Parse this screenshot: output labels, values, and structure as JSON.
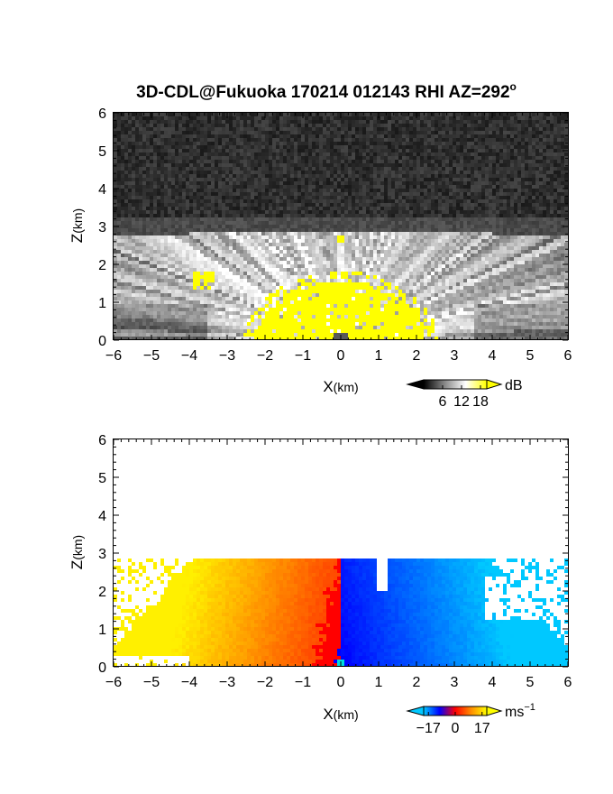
{
  "title": {
    "main": "3D-CDL@Fukuoka 170214 012143 RHI AZ=292",
    "superscript": "o"
  },
  "chart_data": [
    {
      "type": "heatmap",
      "name": "reflectivity",
      "xlabel_main": "X",
      "xlabel_unit": "(km)",
      "ylabel_main": "Z",
      "ylabel_unit": "(km)",
      "xlim": [
        -6,
        6
      ],
      "ylim": [
        0,
        6
      ],
      "xticks": [
        "-6",
        "-5",
        "-4",
        "-3",
        "-2",
        "-1",
        "0",
        "1",
        "2",
        "3",
        "4",
        "5",
        "6"
      ],
      "yticks": [
        "0",
        "1",
        "2",
        "3",
        "4",
        "5",
        "6"
      ],
      "echo_top_km": 2.85,
      "colorbar": {
        "unit": "dB",
        "ticks": [
          "6",
          "12",
          "18"
        ],
        "range": [
          0,
          20
        ],
        "colors": {
          "low": "#000000",
          "high": "#ffffff",
          "over": "#ffff00"
        }
      }
    },
    {
      "type": "heatmap",
      "name": "doppler-velocity",
      "xlabel_main": "X",
      "xlabel_unit": "(km)",
      "ylabel_main": "Z",
      "ylabel_unit": "(km)",
      "xlim": [
        -6,
        6
      ],
      "ylim": [
        0,
        6
      ],
      "xticks": [
        "-6",
        "-5",
        "-4",
        "-3",
        "-2",
        "-1",
        "0",
        "1",
        "2",
        "3",
        "4",
        "5",
        "6"
      ],
      "yticks": [
        "0",
        "1",
        "2",
        "3",
        "4",
        "5",
        "6"
      ],
      "echo_top_km": 2.85,
      "colorbar": {
        "unit_main": "ms",
        "unit_sup": "−1",
        "ticks": [
          "−17",
          "0",
          "17"
        ],
        "range": [
          -20,
          20
        ],
        "colors": {
          "neg_far": "#00c8ff",
          "neg_near": "#0000ff",
          "zero": "#ff0000",
          "pos_near": "#ff8c00",
          "pos_far": "#ffff00"
        }
      }
    }
  ]
}
